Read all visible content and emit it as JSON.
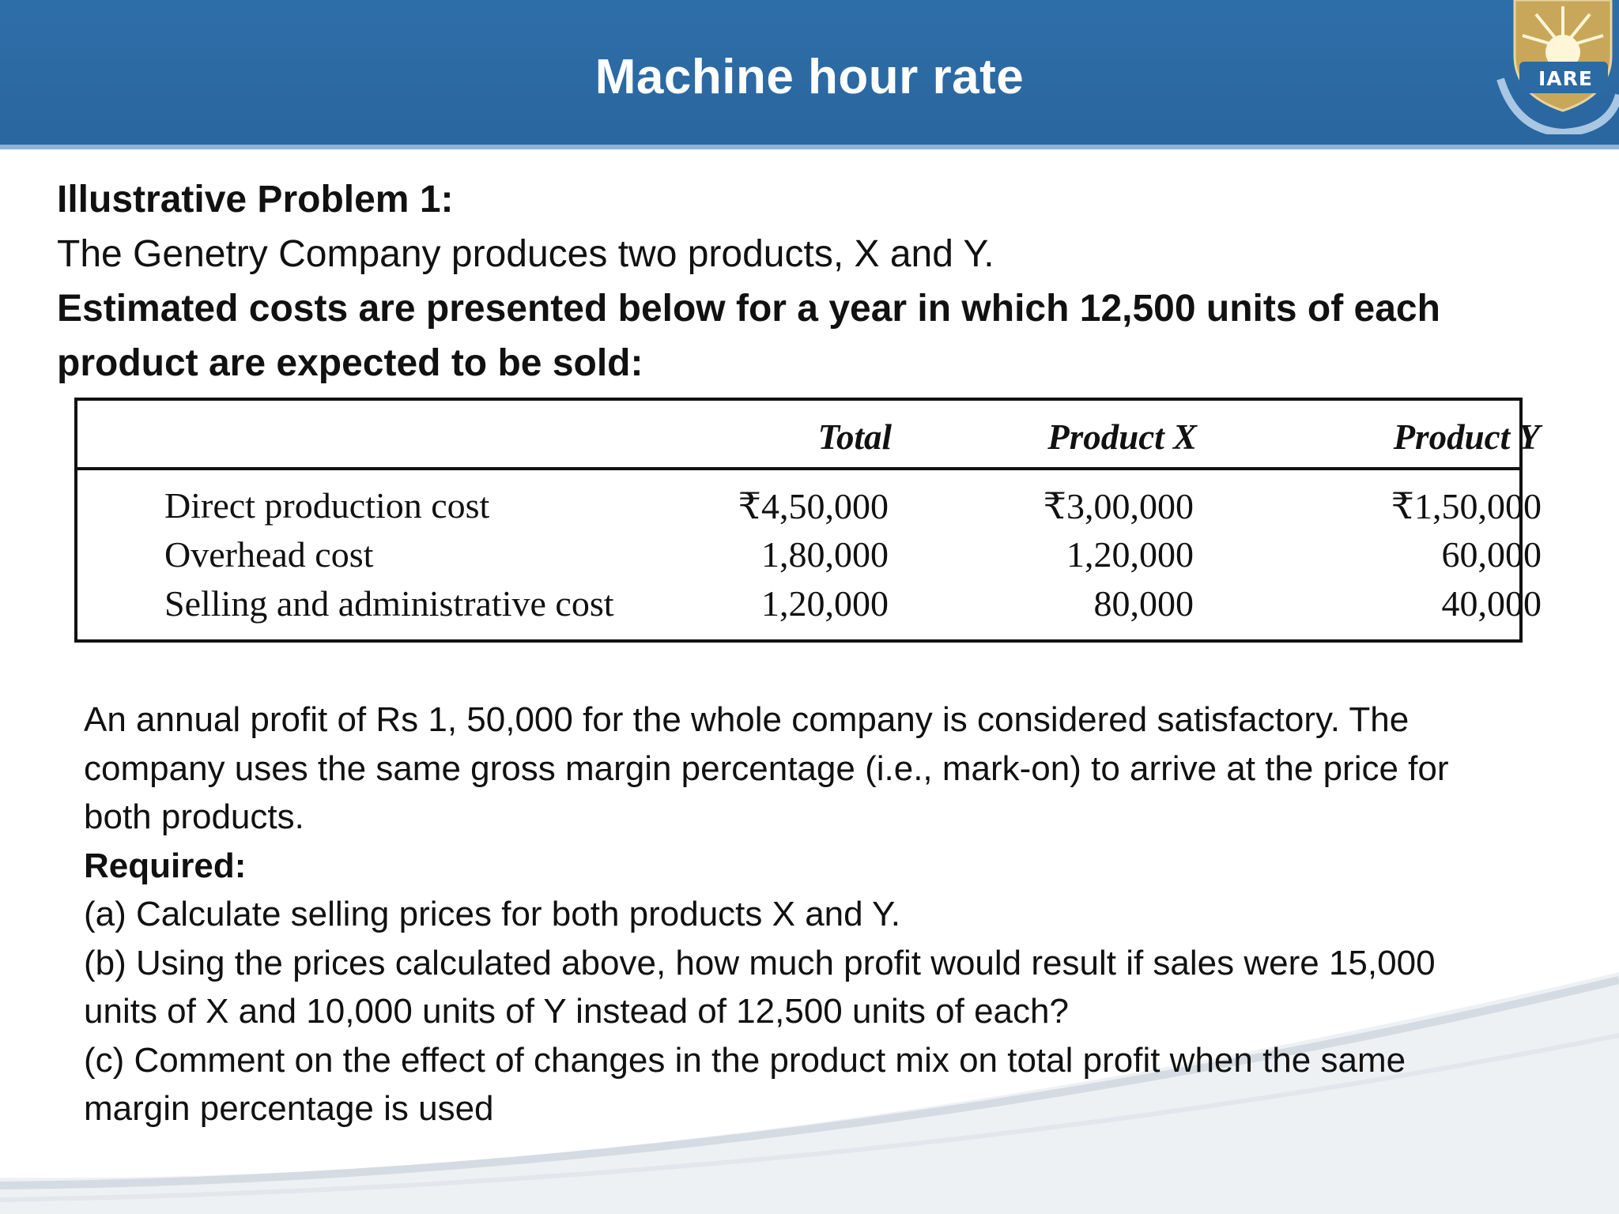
{
  "header": {
    "title": "Machine hour rate",
    "logo_text": "IARE",
    "logo_icon": "iare-emblem-icon",
    "color": "#2c6aa4"
  },
  "intro": {
    "heading": "Illustrative Problem 1:",
    "line1": "The Genetry Company produces two products, X and Y.",
    "line2": "Estimated costs are presented below for a year in which 12,500 units of each",
    "line3": "product are expected to be sold:"
  },
  "table": {
    "columns": [
      "Total",
      "Product X",
      "Product Y"
    ],
    "rows": [
      {
        "label": "Direct  production  cost",
        "total": "₹4,50,000",
        "x": "₹3,00,000",
        "y": "₹1,50,000"
      },
      {
        "label": "Overhead cost",
        "total": "1,80,000",
        "x": "1,20,000",
        "y": "60,000"
      },
      {
        "label": "Selling and administrative cost",
        "total": "1,20,000",
        "x": "80,000",
        "y": "40,000"
      }
    ]
  },
  "body": {
    "p1_l1": "An annual profit of Rs 1, 50,000 for the whole company is considered satisfactory. The",
    "p1_l2": "company uses the same gross margin percentage (i.e., mark-on) to arrive at the price for",
    "p1_l3": "both products.",
    "required": "Required:",
    "a": "(a) Calculate selling prices for both products X and Y.",
    "b_l1": "(b) Using the prices calculated above, how much profit would result if sales were 15,000",
    "b_l2": "units of X and 10,000 units of Y instead of 12,500 units of each?",
    "c_l1": "(c) Comment on the effect of changes in the product mix on total profit when the same",
    "c_l2": "margin percentage is used"
  }
}
